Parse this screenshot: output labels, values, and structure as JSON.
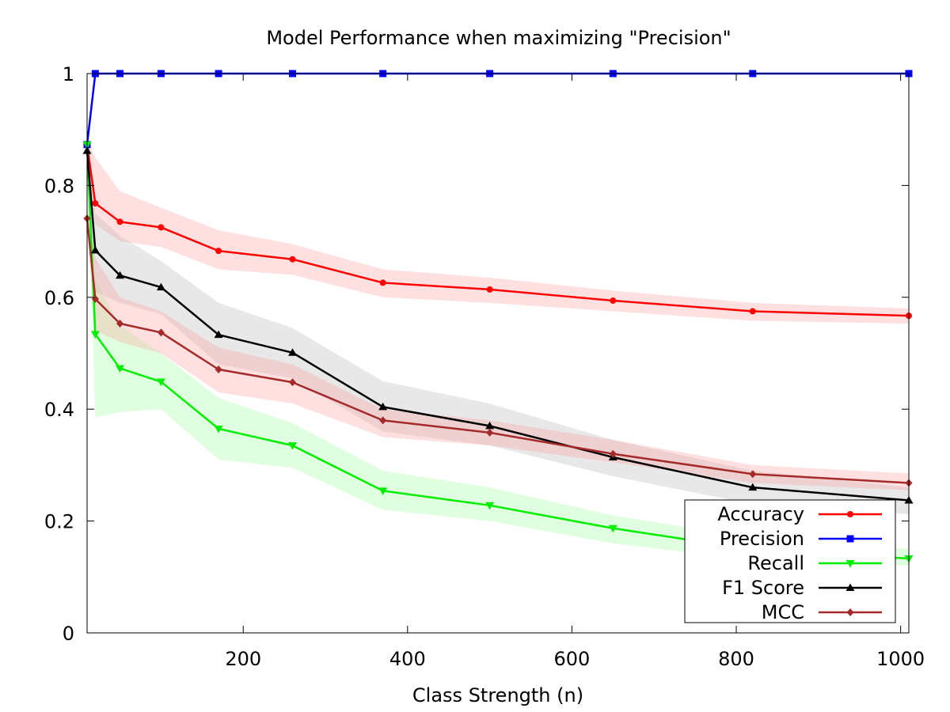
{
  "chart_data": {
    "type": "line",
    "title": "Model Performance when maximizing \"Precision\"",
    "xlabel": "Class Strength (n)",
    "ylabel": "",
    "xlim": [
      10,
      1010
    ],
    "ylim": [
      0,
      1
    ],
    "xticks": [
      200,
      400,
      600,
      800,
      1000
    ],
    "xtick_labels": [
      "200",
      "400",
      "600",
      "800",
      "1000"
    ],
    "yticks": [
      0,
      0.2,
      0.4,
      0.6,
      0.8,
      1
    ],
    "ytick_labels": [
      "0",
      "0.2",
      "0.4",
      "0.6",
      "0.8",
      "1"
    ],
    "grid": false,
    "legend_position": "bottom-right",
    "x": [
      10,
      20,
      50,
      100,
      170,
      260,
      370,
      500,
      650,
      820,
      1010
    ],
    "series": [
      {
        "name": "Accuracy",
        "color": "#ff0000",
        "marker": "circle",
        "values": [
          0.873,
          0.768,
          0.735,
          0.725,
          0.683,
          0.668,
          0.626,
          0.614,
          0.594,
          0.575,
          0.567
        ],
        "band_low": [
          0.86,
          0.73,
          0.7,
          0.69,
          0.65,
          0.64,
          0.6,
          0.59,
          0.575,
          0.558,
          0.553
        ],
        "band_high": [
          0.885,
          0.85,
          0.79,
          0.76,
          0.72,
          0.695,
          0.65,
          0.635,
          0.612,
          0.59,
          0.58
        ],
        "band_color": "#ff9999"
      },
      {
        "name": "Precision",
        "color": "#0000ff",
        "marker": "square",
        "values": [
          0.873,
          1.0,
          1.0,
          1.0,
          1.0,
          1.0,
          1.0,
          1.0,
          1.0,
          1.0,
          1.0
        ]
      },
      {
        "name": "Recall",
        "color": "#00ee00",
        "marker": "triangle-down",
        "values": [
          0.873,
          0.534,
          0.473,
          0.449,
          0.365,
          0.335,
          0.254,
          0.228,
          0.187,
          0.149,
          0.133
        ],
        "band_low": [
          0.86,
          0.385,
          0.395,
          0.4,
          0.31,
          0.295,
          0.22,
          0.2,
          0.16,
          0.13,
          0.12
        ],
        "band_high": [
          0.885,
          0.63,
          0.55,
          0.5,
          0.42,
          0.375,
          0.29,
          0.26,
          0.21,
          0.17,
          0.15
        ],
        "band_color": "#99ff99"
      },
      {
        "name": "F1 Score",
        "color": "#000000",
        "marker": "triangle-up",
        "values": [
          0.862,
          0.684,
          0.639,
          0.618,
          0.533,
          0.501,
          0.404,
          0.37,
          0.314,
          0.26,
          0.237
        ],
        "band_low": [
          0.85,
          0.61,
          0.59,
          0.57,
          0.48,
          0.455,
          0.36,
          0.335,
          0.28,
          0.23,
          0.212
        ],
        "band_high": [
          0.875,
          0.75,
          0.71,
          0.665,
          0.59,
          0.545,
          0.45,
          0.41,
          0.345,
          0.29,
          0.26
        ],
        "band_color": "#b3b3b3"
      },
      {
        "name": "MCC",
        "color": "#a52a2a",
        "marker": "diamond",
        "values": [
          0.741,
          0.597,
          0.553,
          0.537,
          0.471,
          0.448,
          0.38,
          0.358,
          0.32,
          0.284,
          0.268
        ],
        "band_low": [
          0.73,
          0.54,
          0.52,
          0.5,
          0.43,
          0.41,
          0.35,
          0.335,
          0.305,
          0.268,
          0.255
        ],
        "band_high": [
          0.755,
          0.67,
          0.6,
          0.575,
          0.51,
          0.48,
          0.4,
          0.38,
          0.345,
          0.3,
          0.285
        ],
        "band_color": "#ff9999"
      }
    ]
  }
}
